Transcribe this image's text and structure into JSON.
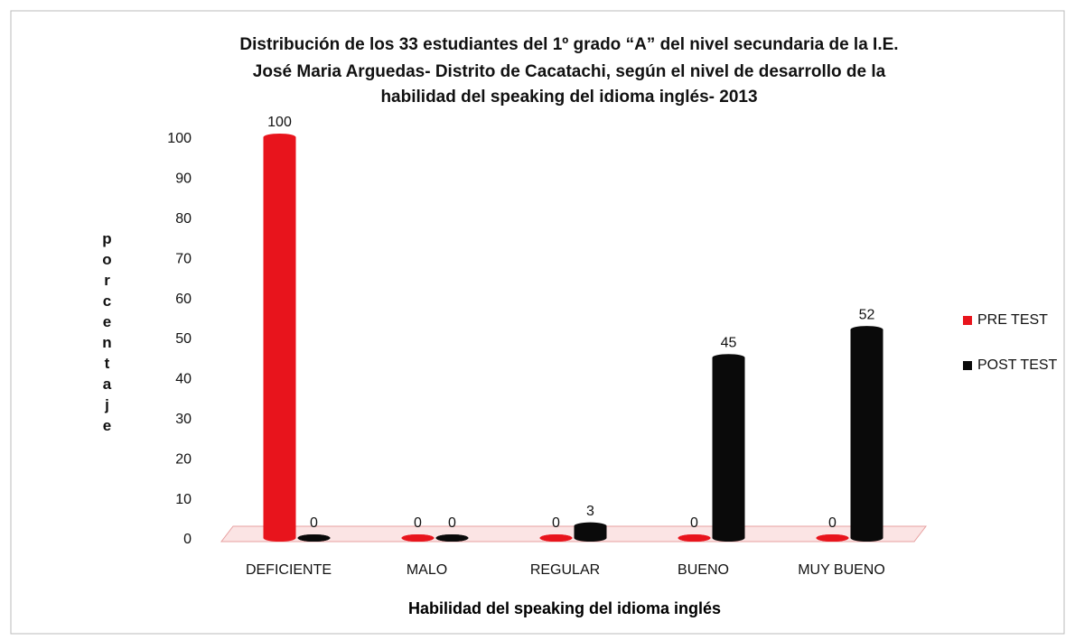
{
  "chart_data": {
    "type": "bar",
    "title": [
      "Distribución de los 33 estudiantes del 1º grado “A” del nivel secundaria de la I.E.",
      "José Maria Arguedas- Distrito de Cacatachi, según el nivel de desarrollo de la",
      "habilidad del speaking del idioma inglés- 2013"
    ],
    "x_label": "Habilidad del speaking del idioma inglés",
    "y_label": "porcentaje",
    "categories": [
      "DEFICIENTE",
      "MALO",
      "REGULAR",
      "BUENO",
      "MUY BUENO"
    ],
    "series": [
      {
        "name": "PRE TEST",
        "color": "#e8141c",
        "values": [
          100,
          0,
          0,
          0,
          0
        ]
      },
      {
        "name": "POST TEST",
        "color": "#0a0a0a",
        "values": [
          0,
          0,
          3,
          45,
          52
        ]
      }
    ],
    "ylim": [
      0,
      100
    ],
    "yticks": [
      0,
      10,
      20,
      30,
      40,
      50,
      60,
      70,
      80,
      90,
      100
    ],
    "legend": "right"
  }
}
